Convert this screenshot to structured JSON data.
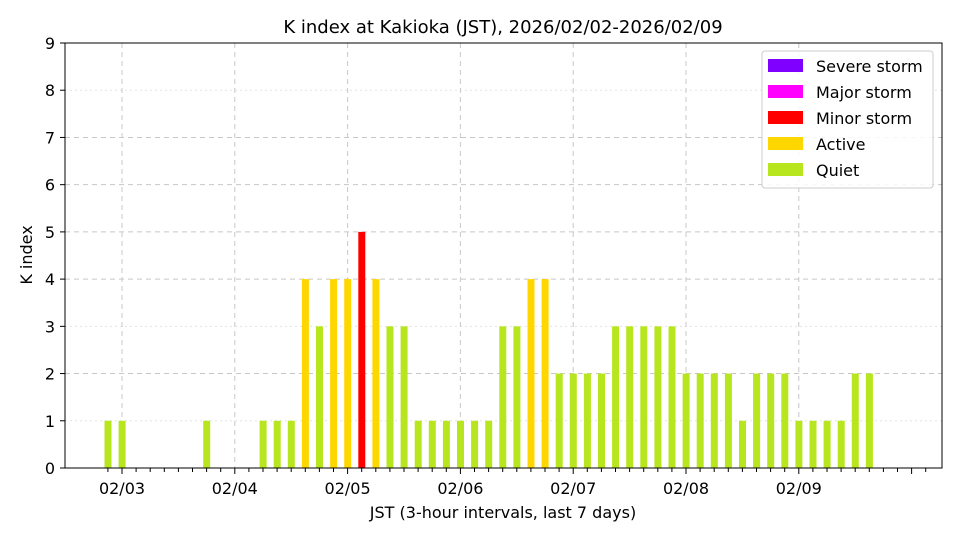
{
  "chart_data": {
    "type": "bar",
    "title": "K index at Kakioka (JST), 2026/02/02-2026/02/09",
    "xlabel": "JST (3-hour intervals, last 7 days)",
    "ylabel": "K index",
    "ylim": [
      0,
      9
    ],
    "yticks": [
      "0",
      "1",
      "2",
      "3",
      "4",
      "5",
      "6",
      "7",
      "8",
      "9"
    ],
    "xticks": [
      "02/03",
      "02/04",
      "02/05",
      "02/06",
      "02/07",
      "02/08",
      "02/09"
    ],
    "grid": true,
    "legend_position": "top-right",
    "legend": [
      {
        "name": "Severe storm",
        "color": "#7f00ff"
      },
      {
        "name": "Major storm",
        "color": "#ff00ff"
      },
      {
        "name": "Minor storm",
        "color": "#ff0000"
      },
      {
        "name": "Active",
        "color": "#ffd700"
      },
      {
        "name": "Quiet",
        "color": "#b8e61e"
      }
    ],
    "values": [
      1,
      1,
      0,
      0,
      0,
      0,
      0,
      1,
      0,
      0,
      0,
      1,
      1,
      1,
      4,
      3,
      4,
      4,
      5,
      4,
      3,
      3,
      1,
      1,
      1,
      1,
      1,
      1,
      3,
      3,
      4,
      4,
      2,
      2,
      2,
      2,
      3,
      3,
      3,
      3,
      3,
      2,
      2,
      2,
      2,
      1,
      2,
      2,
      2,
      1,
      1,
      1,
      1,
      2,
      2,
      0,
      0
    ]
  }
}
